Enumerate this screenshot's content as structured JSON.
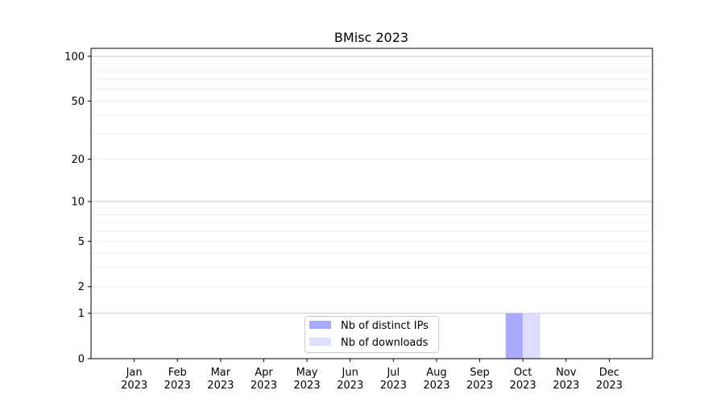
{
  "chart_data": {
    "type": "bar",
    "title": "BMisc 2023",
    "xlabel": "",
    "ylabel": "",
    "categories": [
      "Jan\n2023",
      "Feb\n2023",
      "Mar\n2023",
      "Apr\n2023",
      "May\n2023",
      "Jun\n2023",
      "Jul\n2023",
      "Aug\n2023",
      "Sep\n2023",
      "Oct\n2023",
      "Nov\n2023",
      "Dec\n2023"
    ],
    "y_scale": "log10(y+1)",
    "ylim": [
      0,
      113
    ],
    "y_ticks": [
      0,
      1,
      2,
      5,
      10,
      20,
      50,
      100
    ],
    "y_minor_grid": [
      3,
      4,
      6,
      7,
      8,
      9,
      30,
      40,
      60,
      70,
      80,
      90
    ],
    "grid": true,
    "legend_position": "lower-center",
    "series": [
      {
        "name": "Nb of distinct IPs",
        "color": "#aaaaff",
        "values": [
          0,
          0,
          0,
          0,
          0,
          0,
          0,
          0,
          0,
          1,
          0,
          0
        ]
      },
      {
        "name": "Nb of downloads",
        "color": "#ddddff",
        "values": [
          0,
          0,
          0,
          0,
          0,
          0,
          0,
          0,
          0,
          1,
          0,
          0
        ]
      }
    ]
  }
}
